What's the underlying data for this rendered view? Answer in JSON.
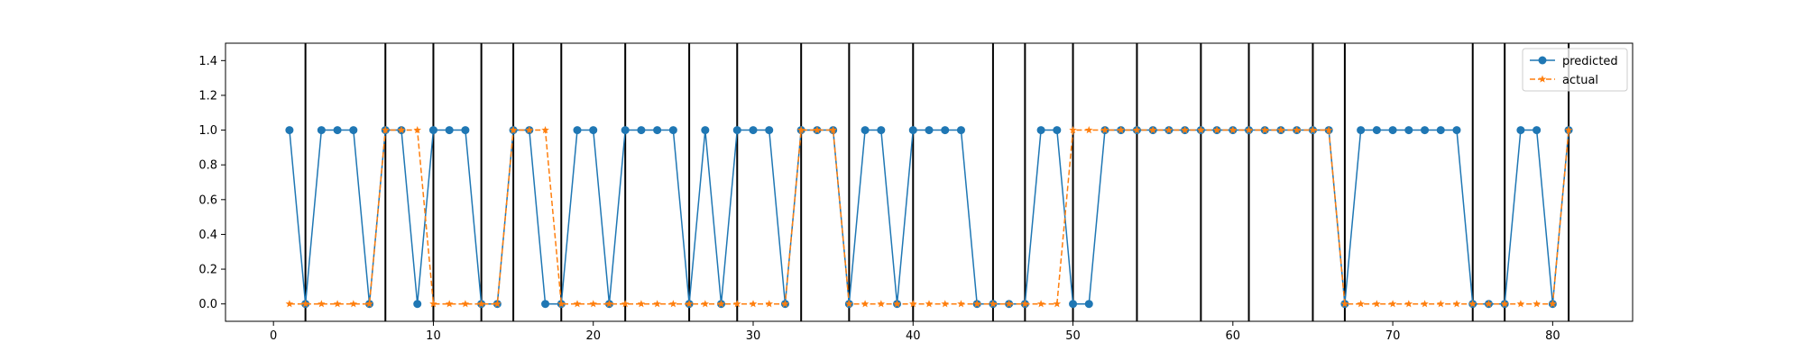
{
  "chart_data": {
    "type": "line",
    "title": "",
    "xlabel": "",
    "ylabel": "",
    "xlim": [
      -3,
      85
    ],
    "ylim": [
      -0.1,
      1.5
    ],
    "xticks": [
      0,
      10,
      20,
      30,
      40,
      50,
      60,
      70,
      80
    ],
    "yticks": [
      0.0,
      0.2,
      0.4,
      0.6,
      0.8,
      1.0,
      1.2,
      1.4
    ],
    "xtick_labels": [
      "0",
      "10",
      "20",
      "30",
      "40",
      "50",
      "60",
      "70",
      "80"
    ],
    "ytick_labels": [
      "0.0",
      "0.2",
      "0.4",
      "0.6",
      "0.8",
      "1.0",
      "1.2",
      "1.4"
    ],
    "grid": false,
    "legend_position": "top-right",
    "vertical_lines_x": [
      2,
      7,
      10,
      13,
      15,
      18,
      22,
      26,
      29,
      33,
      36,
      40,
      45,
      47,
      50,
      54,
      58,
      61,
      65,
      67,
      75,
      77,
      81
    ],
    "x": [
      1,
      2,
      3,
      4,
      5,
      6,
      7,
      8,
      9,
      10,
      11,
      12,
      13,
      14,
      15,
      16,
      17,
      18,
      19,
      20,
      21,
      22,
      23,
      24,
      25,
      26,
      27,
      28,
      29,
      30,
      31,
      32,
      33,
      34,
      35,
      36,
      37,
      38,
      39,
      40,
      41,
      42,
      43,
      44,
      45,
      46,
      47,
      48,
      49,
      50,
      51,
      52,
      53,
      54,
      55,
      56,
      57,
      58,
      59,
      60,
      61,
      62,
      63,
      64,
      65,
      66,
      67,
      68,
      69,
      70,
      71,
      72,
      73,
      74,
      75,
      76,
      77,
      78,
      79,
      80,
      81
    ],
    "series": [
      {
        "name": "predicted",
        "color": "#1f77b4",
        "style": "solid",
        "marker": "circle",
        "values": [
          1,
          0,
          1,
          1,
          1,
          0,
          1,
          1,
          0,
          1,
          1,
          1,
          0,
          0,
          1,
          1,
          0,
          0,
          1,
          1,
          0,
          1,
          1,
          1,
          1,
          0,
          1,
          0,
          1,
          1,
          1,
          0,
          1,
          1,
          1,
          0,
          1,
          1,
          0,
          1,
          1,
          1,
          1,
          0,
          0,
          0,
          0,
          1,
          1,
          0,
          0,
          1,
          1,
          1,
          1,
          1,
          1,
          1,
          1,
          1,
          1,
          1,
          1,
          1,
          1,
          1,
          0,
          1,
          1,
          1,
          1,
          1,
          1,
          1,
          0,
          0,
          0,
          1,
          1,
          0,
          1
        ]
      },
      {
        "name": "actual",
        "color": "#ff7f0e",
        "style": "dashed",
        "marker": "star",
        "values": [
          0,
          0,
          0,
          0,
          0,
          0,
          1,
          1,
          1,
          0,
          0,
          0,
          0,
          0,
          1,
          1,
          1,
          0,
          0,
          0,
          0,
          0,
          0,
          0,
          0,
          0,
          0,
          0,
          0,
          0,
          0,
          0,
          1,
          1,
          1,
          0,
          0,
          0,
          0,
          0,
          0,
          0,
          0,
          0,
          0,
          0,
          0,
          0,
          0,
          1,
          1,
          1,
          1,
          1,
          1,
          1,
          1,
          1,
          1,
          1,
          1,
          1,
          1,
          1,
          1,
          1,
          0,
          0,
          0,
          0,
          0,
          0,
          0,
          0,
          0,
          0,
          0,
          0,
          0,
          0,
          1
        ]
      }
    ]
  }
}
